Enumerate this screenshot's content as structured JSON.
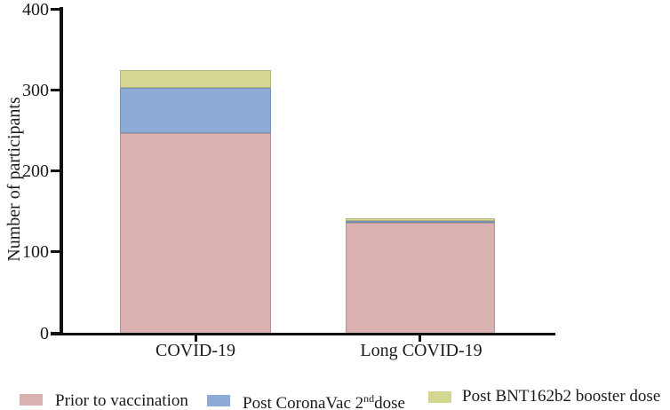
{
  "chart_data": {
    "type": "bar",
    "stacked": true,
    "title": "",
    "xlabel": "",
    "ylabel": "Number of participants",
    "categories": [
      "COVID-19",
      "Long COVID-19"
    ],
    "series": [
      {
        "name": "Prior to vaccination",
        "color": "#d9b1b0",
        "values": [
          248,
          137
        ]
      },
      {
        "name": "Post CoronaVac 2nd dose",
        "color": "#8cacd5",
        "values": [
          56,
          2
        ]
      },
      {
        "name": "Post BNT162b2 booster dose",
        "color": "#d6d693",
        "values": [
          21,
          3
        ]
      }
    ],
    "stack_totals": [
      325,
      142
    ],
    "ylim": [
      0,
      400
    ],
    "yticks": [
      0,
      100,
      200,
      300,
      400
    ],
    "grid": false,
    "legend_position": "bottom",
    "axis_color": "#111111",
    "background_color": "#ffffff"
  },
  "legend": {
    "items": [
      {
        "label": "Prior to vaccination",
        "color": "#d9b1b0"
      },
      {
        "label_prefix": "Post CoronaVac 2",
        "label_sup": "nd",
        "label_suffix": "dose",
        "color": "#8cacd5"
      },
      {
        "label": "Post BNT162b2 booster dose",
        "color": "#d6d693"
      }
    ]
  }
}
